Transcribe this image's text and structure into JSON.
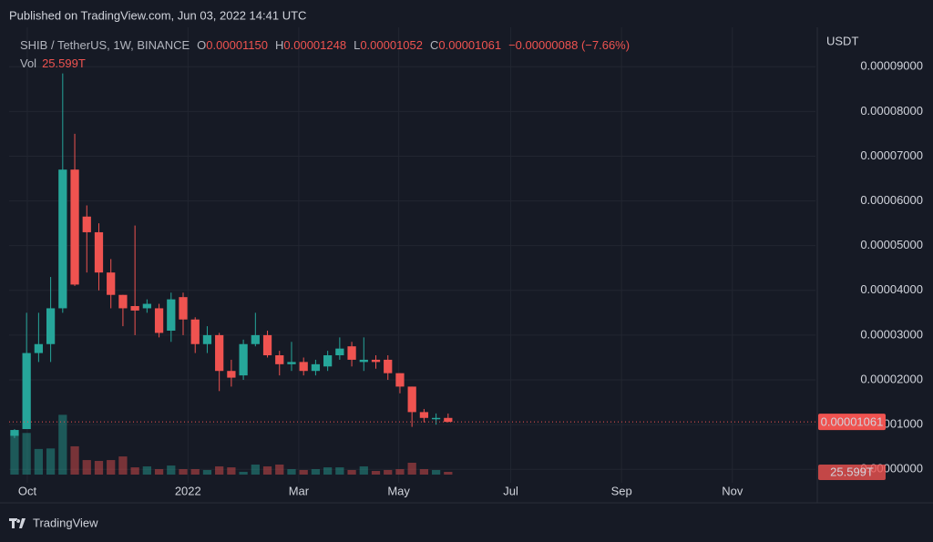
{
  "published": "Published on TradingView.com, Jun 03, 2022 14:41 UTC",
  "brand": "TradingView",
  "chart_data": {
    "type": "candlestick",
    "title": "SHIB / TetherUS, 1W, BINANCE",
    "legend": {
      "o_key": "O",
      "o": "0.00001150",
      "h_key": "H",
      "h": "0.00001248",
      "l_key": "L",
      "l": "0.00001052",
      "c_key": "C",
      "c": "0.00001061",
      "change": "−0.00000088 (−7.66%)"
    },
    "y_axis_label": "USDT",
    "up_color": "#26a69a",
    "down_color": "#ef5350",
    "grid": true,
    "categories": [
      null,
      null,
      null,
      null,
      null,
      null,
      null,
      null,
      null,
      null,
      null,
      null,
      null,
      null,
      null,
      null,
      null,
      null,
      null,
      null,
      null,
      null,
      null,
      null,
      null,
      null,
      null,
      null,
      null,
      null,
      null,
      null,
      null,
      null,
      null,
      null,
      null
    ],
    "open": [
      7.5e-06,
      9e-06,
      2.6e-05,
      2.8e-05,
      3.6e-05,
      6.7e-05,
      5.65e-05,
      5.3e-05,
      4.4e-05,
      3.9e-05,
      3.65e-05,
      3.6e-05,
      3.6e-05,
      3.1e-05,
      3.85e-05,
      3.35e-05,
      2.8e-05,
      3e-05,
      2.2e-05,
      2.1e-05,
      2.8e-05,
      3e-05,
      2.55e-05,
      2.35e-05,
      2.4e-05,
      2.2e-05,
      2.3e-05,
      2.55e-05,
      2.75e-05,
      2.4e-05,
      2.45e-05,
      2.45e-05,
      2.15e-05,
      1.85e-05,
      1.28e-05,
      1.12e-05,
      1.15e-05
    ],
    "high": [
      9e-06,
      3.5e-05,
      3.5e-05,
      4.3e-05,
      8.85e-05,
      7.5e-05,
      5.9e-05,
      5.5e-05,
      4.7e-05,
      3.9e-05,
      5.45e-05,
      3.8e-05,
      3.7e-05,
      3.95e-05,
      3.95e-05,
      3.4e-05,
      3.2e-05,
      3.05e-05,
      2.45e-05,
      2.9e-05,
      3.5e-05,
      3.1e-05,
      2.65e-05,
      2.85e-05,
      2.5e-05,
      2.45e-05,
      2.65e-05,
      2.95e-05,
      2.85e-05,
      2.95e-05,
      2.55e-05,
      2.55e-05,
      2.15e-05,
      1.85e-05,
      1.35e-05,
      1.25e-05,
      1.248e-05
    ],
    "low": [
      7e-06,
      1e-05,
      2.4e-05,
      2.4e-05,
      3.5e-05,
      4.1e-05,
      4.4e-05,
      4e-05,
      3.6e-05,
      3.2e-05,
      3e-05,
      3.5e-05,
      2.95e-05,
      2.85e-05,
      3e-05,
      2.6e-05,
      2.6e-05,
      1.75e-05,
      1.85e-05,
      2e-05,
      2.75e-05,
      2.5e-05,
      2.1e-05,
      2.2e-05,
      2.1e-05,
      2.1e-05,
      2.2e-05,
      2.45e-05,
      2.3e-05,
      2.2e-05,
      2.25e-05,
      2e-05,
      1.7e-05,
      9.5e-06,
      1.05e-05,
      1e-05,
      1.052e-05
    ],
    "close": [
      8.8e-06,
      2.6e-05,
      2.8e-05,
      3.6e-05,
      6.7e-05,
      4.13e-05,
      5.3e-05,
      4.4e-05,
      3.9e-05,
      3.6e-05,
      3.55e-05,
      3.7e-05,
      3.05e-05,
      3.8e-05,
      3.35e-05,
      2.8e-05,
      3e-05,
      2.2e-05,
      2.05e-05,
      2.8e-05,
      3e-05,
      2.55e-05,
      2.35e-05,
      2.4e-05,
      2.2e-05,
      2.35e-05,
      2.55e-05,
      2.7e-05,
      2.45e-05,
      2.45e-05,
      2.4e-05,
      2.15e-05,
      1.85e-05,
      1.28e-05,
      1.15e-05,
      1.15e-05,
      1.061e-05
    ],
    "volume_name": "Vol",
    "volume": [
      390,
      390,
      240,
      245,
      560,
      265,
      136,
      128,
      136,
      170,
      68,
      77,
      51,
      85,
      51,
      51,
      43,
      77,
      68,
      26,
      94,
      77,
      94,
      51,
      43,
      51,
      68,
      68,
      43,
      77,
      34,
      43,
      51,
      111,
      51,
      43,
      25.599
    ],
    "volume_value_labels": {
      "36": "25.599T"
    },
    "volume_ylim": [
      0,
      1024
    ],
    "last_price": {
      "value": 1.061e-05,
      "label": "0.00001061"
    },
    "xlim": [
      -0.45,
      66.5
    ],
    "xticks": [
      {
        "value": 1.06,
        "label": "Oct"
      },
      {
        "value": 14.4,
        "label": "2022"
      },
      {
        "value": 23.6,
        "label": "Mar"
      },
      {
        "value": 31.9,
        "label": "May"
      },
      {
        "value": 41.2,
        "label": "Jul"
      },
      {
        "value": 50.4,
        "label": "Sep"
      },
      {
        "value": 59.6,
        "label": "Nov"
      }
    ],
    "ylim": [
      -3e-06,
      9.88e-05
    ],
    "yticks": [
      {
        "value": 0,
        "label": "0.00000000"
      },
      {
        "value": 1e-05,
        "label": "0.00001000"
      },
      {
        "value": 2e-05,
        "label": "0.00002000"
      },
      {
        "value": 3e-05,
        "label": "0.00003000"
      },
      {
        "value": 4e-05,
        "label": "0.00004000"
      },
      {
        "value": 5e-05,
        "label": "0.00005000"
      },
      {
        "value": 6e-05,
        "label": "0.00006000"
      },
      {
        "value": 7e-05,
        "label": "0.00007000"
      },
      {
        "value": 8e-05,
        "label": "0.00008000"
      },
      {
        "value": 9e-05,
        "label": "0.00009000"
      }
    ]
  }
}
